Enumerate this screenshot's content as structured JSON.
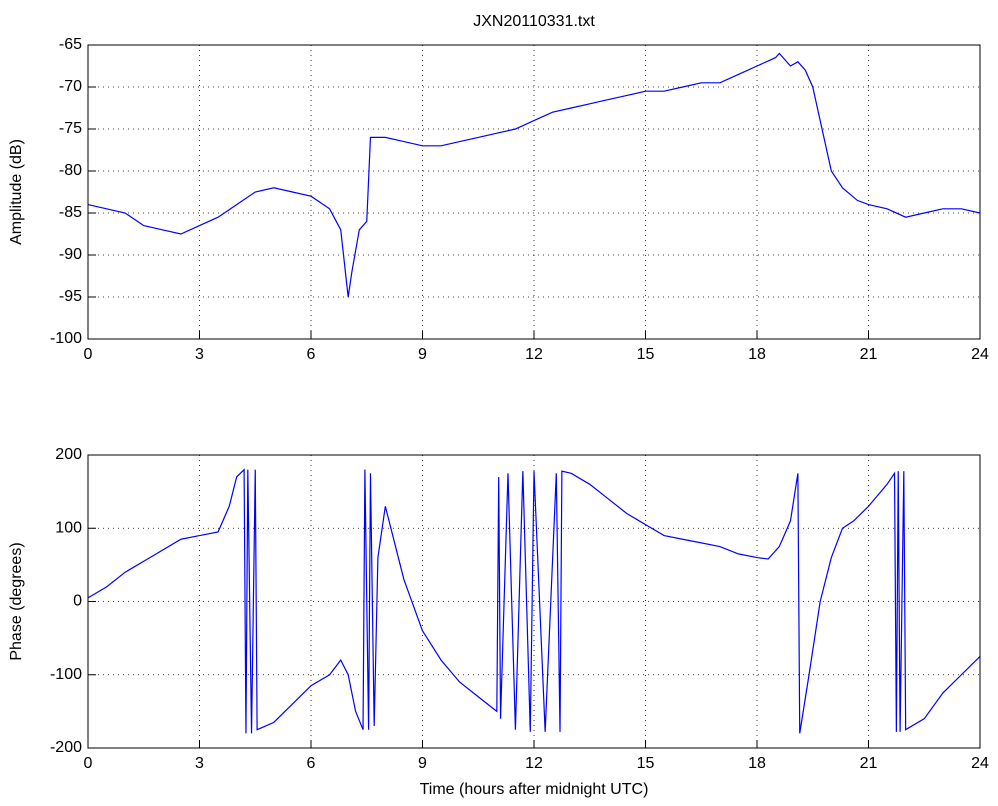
{
  "chart_data": [
    {
      "type": "line",
      "title": "JXN20110331.txt",
      "y_label": "Amplitude (dB)",
      "x": [
        0,
        0.5,
        1,
        1.5,
        2,
        2.5,
        3,
        3.5,
        4,
        4.5,
        5,
        5.5,
        6,
        6.5,
        6.8,
        7.0,
        7.1,
        7.3,
        7.5,
        7.6,
        8,
        8.5,
        9,
        9.5,
        10,
        10.5,
        11,
        11.5,
        12,
        12.5,
        13,
        13.5,
        14,
        14.5,
        15,
        15.5,
        16,
        16.5,
        17,
        17.5,
        18,
        18.5,
        18.6,
        18.9,
        19.1,
        19.3,
        19.5,
        19.7,
        20,
        20.3,
        20.7,
        21,
        21.5,
        22,
        22.5,
        23,
        23.5,
        24
      ],
      "series": [
        {
          "name": "Amplitude",
          "color": "#0000ff",
          "values": [
            -84,
            -84.5,
            -85,
            -86.5,
            -87,
            -87.5,
            -86.5,
            -85.5,
            -84,
            -82.5,
            -82,
            -82.5,
            -83,
            -84.5,
            -87,
            -95,
            -92,
            -87,
            -86,
            -76,
            -76,
            -76.5,
            -77,
            -77,
            -76.5,
            -76,
            -75.5,
            -75,
            -74,
            -73,
            -72.5,
            -72,
            -71.5,
            -71,
            -70.5,
            -70.5,
            -70,
            -69.5,
            -69.5,
            -68.5,
            -67.5,
            -66.5,
            -66,
            -67.5,
            -67,
            -68,
            -70,
            -74,
            -80,
            -82,
            -83.5,
            -84,
            -84.5,
            -85.5,
            -85,
            -84.5,
            -84.5,
            -85
          ]
        }
      ],
      "xlim": [
        0,
        24
      ],
      "xticks": [
        0,
        3,
        6,
        9,
        12,
        15,
        18,
        21,
        24
      ],
      "ylim": [
        -100,
        -65
      ],
      "yticks": [
        -100,
        -95,
        -90,
        -85,
        -80,
        -75,
        -70,
        -65
      ],
      "grid": true
    },
    {
      "type": "line",
      "x_label": "Time (hours after midnight UTC)",
      "y_label": "Phase (degrees)",
      "x": [
        0,
        0.5,
        1,
        1.5,
        2,
        2.5,
        3,
        3.5,
        3.8,
        4.0,
        4.2,
        4.25,
        4.3,
        4.4,
        4.5,
        4.55,
        5,
        5.5,
        6,
        6.5,
        6.8,
        7.0,
        7.2,
        7.4,
        7.45,
        7.55,
        7.6,
        7.7,
        7.8,
        8.0,
        8.2,
        8.5,
        9,
        9.5,
        10,
        10.5,
        11,
        11.05,
        11.1,
        11.3,
        11.5,
        11.7,
        11.9,
        12,
        12.3,
        12.6,
        12.7,
        12.75,
        13,
        13.5,
        14,
        14.5,
        15,
        15.5,
        16,
        16.5,
        17,
        17.5,
        18,
        18.3,
        18.6,
        18.9,
        19.1,
        19.15,
        19.4,
        19.7,
        20,
        20.3,
        20.6,
        21,
        21.5,
        21.7,
        21.75,
        21.8,
        21.85,
        21.95,
        22.0,
        22.5,
        23,
        23.5,
        24
      ],
      "series": [
        {
          "name": "Phase",
          "color": "#0000ff",
          "values": [
            5,
            20,
            40,
            55,
            70,
            85,
            90,
            95,
            130,
            170,
            180,
            -180,
            180,
            -180,
            180,
            -175,
            -165,
            -140,
            -115,
            -100,
            -80,
            -100,
            -150,
            -175,
            180,
            -175,
            175,
            -170,
            60,
            130,
            90,
            30,
            -40,
            -80,
            -110,
            -130,
            -150,
            170,
            -160,
            175,
            -175,
            178,
            -178,
            178,
            -178,
            175,
            -178,
            178,
            175,
            160,
            140,
            120,
            105,
            90,
            85,
            80,
            75,
            65,
            60,
            58,
            75,
            110,
            175,
            -180,
            -100,
            0,
            60,
            100,
            110,
            130,
            160,
            175,
            -178,
            178,
            -178,
            178,
            -175,
            -160,
            -125,
            -100,
            -75
          ]
        }
      ],
      "xlim": [
        0,
        24
      ],
      "xticks": [
        0,
        3,
        6,
        9,
        12,
        15,
        18,
        21,
        24
      ],
      "ylim": [
        -200,
        200
      ],
      "yticks": [
        -200,
        -100,
        0,
        100,
        200
      ],
      "grid": true
    }
  ]
}
